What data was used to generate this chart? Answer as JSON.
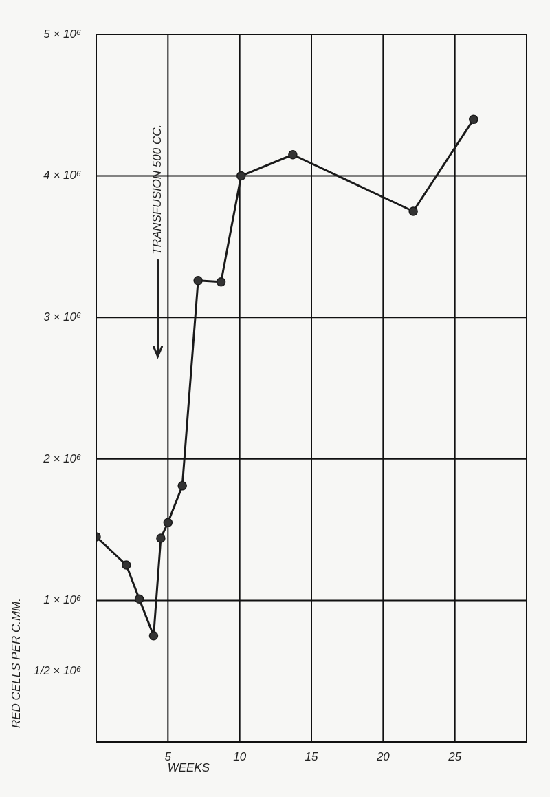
{
  "chart_data": {
    "type": "line",
    "xlabel": "WEEKS",
    "ylabel": "RED CELLS PER C.MM.",
    "x": [
      0,
      2.1,
      3.0,
      4.0,
      4.5,
      5.0,
      6.0,
      7.1,
      8.7,
      10.1,
      13.7,
      22.1,
      26.3
    ],
    "series": [
      {
        "color": "#1a1a1a",
        "values": [
          1450000,
          1250000,
          1010000,
          750000,
          1440000,
          1550000,
          1810000,
          3260000,
          3250000,
          4000000,
          4150000,
          3750000,
          4400000
        ]
      }
    ],
    "xlim": [
      0,
      30
    ],
    "xticks": [
      {
        "value": 0,
        "label": null
      },
      5,
      10,
      15,
      20,
      25,
      {
        "value": 30,
        "label": null
      }
    ],
    "ylim": [
      0,
      5000000
    ],
    "yticks": [
      {
        "value": 500000,
        "label": "1/2 × 10⁶"
      },
      {
        "value": 1000000,
        "label": "1 × 10⁶"
      },
      {
        "value": 2000000,
        "label": "2 × 10⁶"
      },
      {
        "value": 3000000,
        "label": "3 × 10⁶"
      },
      {
        "value": 4000000,
        "label": "4 × 10⁶"
      },
      {
        "value": 5000000,
        "label": "5 × 10⁶"
      }
    ],
    "annotations": [
      "TRANSFUSION 500 CC."
    ],
    "grid": true,
    "marker": "circle",
    "line_style": "solid",
    "legend": false
  }
}
